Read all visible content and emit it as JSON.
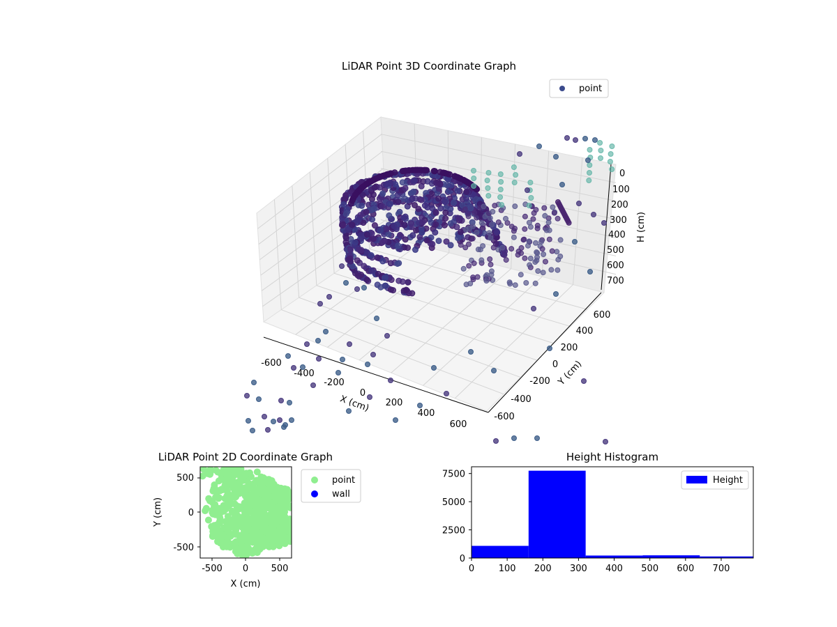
{
  "colors": {
    "point_3d": "#3b4a8c",
    "point_2d": "#90ee90",
    "wall": "#0000ff",
    "hist_bar": "#0000ff",
    "pane": "#f2f2f2",
    "grid": "#d0d0d0"
  },
  "chart_data": [
    {
      "type": "scatter",
      "projection": "3d",
      "title": "LiDAR Point 3D Coordinate Graph",
      "xlabel": "X (cm)",
      "ylabel": "Y (cm)",
      "zlabel": "H (cm)",
      "xticks": [
        "-600",
        "-400",
        "-200",
        "0",
        "200",
        "400",
        "600"
      ],
      "yticks": [
        "-600",
        "-400",
        "-200",
        "0",
        "200",
        "400",
        "600"
      ],
      "zticks": [
        "0",
        "100",
        "200",
        "300",
        "400",
        "500",
        "600",
        "700"
      ],
      "xlim": [
        -700,
        700
      ],
      "ylim": [
        -700,
        700
      ],
      "zlim": [
        0,
        750
      ],
      "z_inverted": true,
      "grid": true,
      "legend": {
        "placement": "upper-right",
        "entries": [
          "point"
        ]
      },
      "series": [
        {
          "name": "point"
        }
      ]
    },
    {
      "type": "scatter",
      "title": "LiDAR Point 2D Coordinate Graph",
      "xlabel": "X (cm)",
      "ylabel": "Y (cm)",
      "xticks": [
        "-500",
        "0",
        "500"
      ],
      "yticks": [
        "500",
        "0",
        "-500"
      ],
      "xlim": [
        -680,
        680
      ],
      "ylim": [
        -680,
        680
      ],
      "legend": {
        "placement": "outside-right",
        "entries": [
          "point",
          "wall"
        ]
      },
      "series": [
        {
          "name": "point"
        },
        {
          "name": "wall"
        }
      ]
    },
    {
      "type": "bar",
      "title": "Height Histogram",
      "xticks": [
        "0",
        "100",
        "200",
        "300",
        "400",
        "500",
        "600",
        "700"
      ],
      "yticks": [
        "0",
        "2500",
        "5000",
        "7500"
      ],
      "xlim": [
        0,
        790
      ],
      "ylim": [
        0,
        8100
      ],
      "bins": [
        {
          "from": 0,
          "to": 160,
          "value": 1080
        },
        {
          "from": 160,
          "to": 320,
          "value": 7750
        },
        {
          "from": 320,
          "to": 480,
          "value": 220
        },
        {
          "from": 480,
          "to": 640,
          "value": 240
        },
        {
          "from": 640,
          "to": 790,
          "value": 140
        }
      ],
      "legend": {
        "placement": "upper-right",
        "entries": [
          "Height"
        ]
      },
      "series": [
        {
          "name": "Height"
        }
      ]
    }
  ]
}
